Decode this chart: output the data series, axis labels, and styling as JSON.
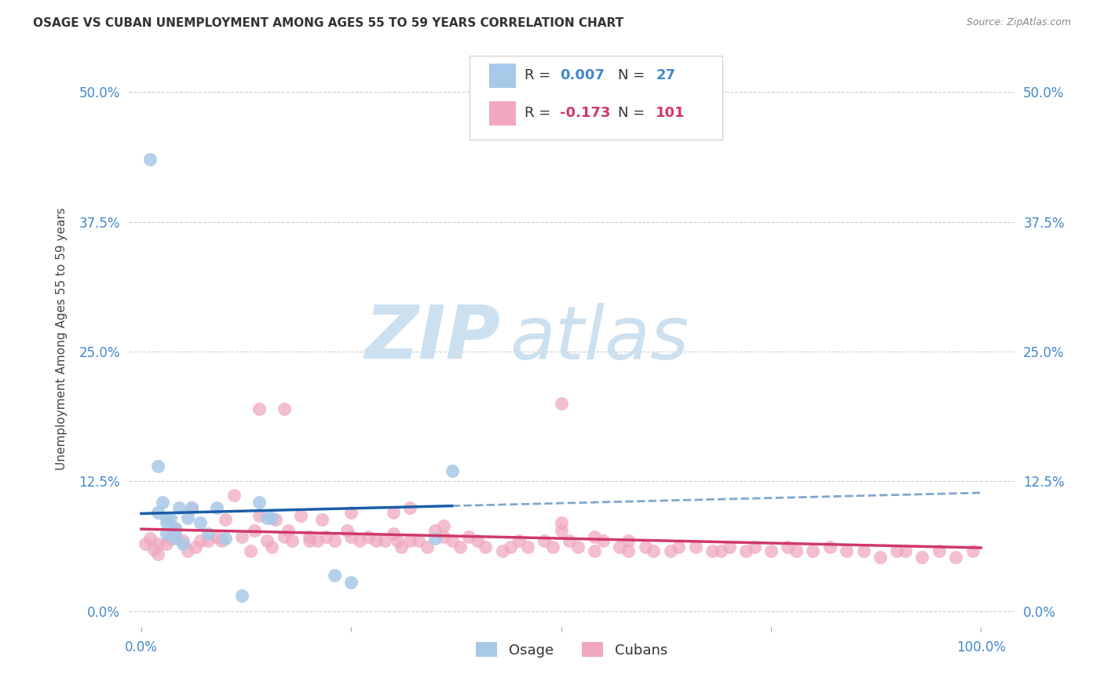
{
  "title": "OSAGE VS CUBAN UNEMPLOYMENT AMONG AGES 55 TO 59 YEARS CORRELATION CHART",
  "source": "Source: ZipAtlas.com",
  "ylabel": "Unemployment Among Ages 55 to 59 years",
  "ytick_labels": [
    "0.0%",
    "12.5%",
    "25.0%",
    "37.5%",
    "50.0%"
  ],
  "ytick_values": [
    0.0,
    0.125,
    0.25,
    0.375,
    0.5
  ],
  "xlim": [
    -0.015,
    1.04
  ],
  "ylim": [
    -0.015,
    0.54
  ],
  "osage_R": 0.007,
  "osage_N": 27,
  "cuban_R": -0.173,
  "cuban_N": 101,
  "osage_color": "#a8c8e8",
  "osage_line_color": "#1a5fa8",
  "cuban_color": "#f0a8be",
  "cuban_line_color": "#d03868",
  "watermark_zip": "ZIP",
  "watermark_atlas": "atlas",
  "watermark_color": "#cce0f0",
  "background_color": "#ffffff",
  "grid_color": "#cccccc",
  "osage_x": [
    0.01,
    0.02,
    0.02,
    0.025,
    0.03,
    0.03,
    0.03,
    0.035,
    0.04,
    0.04,
    0.04,
    0.045,
    0.05,
    0.055,
    0.06,
    0.07,
    0.08,
    0.09,
    0.1,
    0.12,
    0.14,
    0.15,
    0.155,
    0.23,
    0.25,
    0.35,
    0.37
  ],
  "osage_y": [
    0.435,
    0.14,
    0.095,
    0.105,
    0.075,
    0.085,
    0.09,
    0.09,
    0.07,
    0.075,
    0.08,
    0.1,
    0.065,
    0.09,
    0.1,
    0.085,
    0.075,
    0.1,
    0.07,
    0.015,
    0.105,
    0.09,
    0.09,
    0.035,
    0.028,
    0.07,
    0.135
  ],
  "cuban_x": [
    0.005,
    0.01,
    0.015,
    0.02,
    0.02,
    0.03,
    0.035,
    0.04,
    0.05,
    0.055,
    0.06,
    0.065,
    0.07,
    0.08,
    0.09,
    0.095,
    0.1,
    0.11,
    0.12,
    0.13,
    0.135,
    0.14,
    0.15,
    0.155,
    0.16,
    0.17,
    0.175,
    0.18,
    0.19,
    0.2,
    0.21,
    0.215,
    0.22,
    0.23,
    0.245,
    0.25,
    0.26,
    0.27,
    0.28,
    0.29,
    0.3,
    0.305,
    0.31,
    0.32,
    0.33,
    0.34,
    0.35,
    0.36,
    0.37,
    0.38,
    0.39,
    0.4,
    0.41,
    0.43,
    0.44,
    0.45,
    0.46,
    0.48,
    0.49,
    0.5,
    0.51,
    0.52,
    0.54,
    0.55,
    0.57,
    0.58,
    0.6,
    0.61,
    0.63,
    0.64,
    0.66,
    0.68,
    0.69,
    0.7,
    0.72,
    0.73,
    0.75,
    0.77,
    0.78,
    0.8,
    0.82,
    0.84,
    0.86,
    0.88,
    0.9,
    0.91,
    0.93,
    0.95,
    0.97,
    0.99,
    0.14,
    0.17,
    0.2,
    0.25,
    0.3,
    0.32,
    0.36,
    0.5,
    0.54,
    0.58,
    0.5
  ],
  "cuban_y": [
    0.065,
    0.07,
    0.06,
    0.055,
    0.065,
    0.065,
    0.07,
    0.08,
    0.068,
    0.058,
    0.1,
    0.062,
    0.068,
    0.068,
    0.072,
    0.068,
    0.088,
    0.112,
    0.072,
    0.058,
    0.078,
    0.092,
    0.068,
    0.062,
    0.088,
    0.072,
    0.078,
    0.068,
    0.092,
    0.068,
    0.068,
    0.088,
    0.072,
    0.068,
    0.078,
    0.072,
    0.068,
    0.072,
    0.068,
    0.068,
    0.075,
    0.068,
    0.062,
    0.068,
    0.068,
    0.062,
    0.078,
    0.072,
    0.068,
    0.062,
    0.072,
    0.068,
    0.062,
    0.058,
    0.062,
    0.068,
    0.062,
    0.068,
    0.062,
    0.078,
    0.068,
    0.062,
    0.058,
    0.068,
    0.062,
    0.068,
    0.062,
    0.058,
    0.058,
    0.062,
    0.062,
    0.058,
    0.058,
    0.062,
    0.058,
    0.062,
    0.058,
    0.062,
    0.058,
    0.058,
    0.062,
    0.058,
    0.058,
    0.052,
    0.058,
    0.058,
    0.052,
    0.058,
    0.052,
    0.058,
    0.195,
    0.195,
    0.072,
    0.095,
    0.095,
    0.1,
    0.082,
    0.2,
    0.072,
    0.058,
    0.085
  ]
}
